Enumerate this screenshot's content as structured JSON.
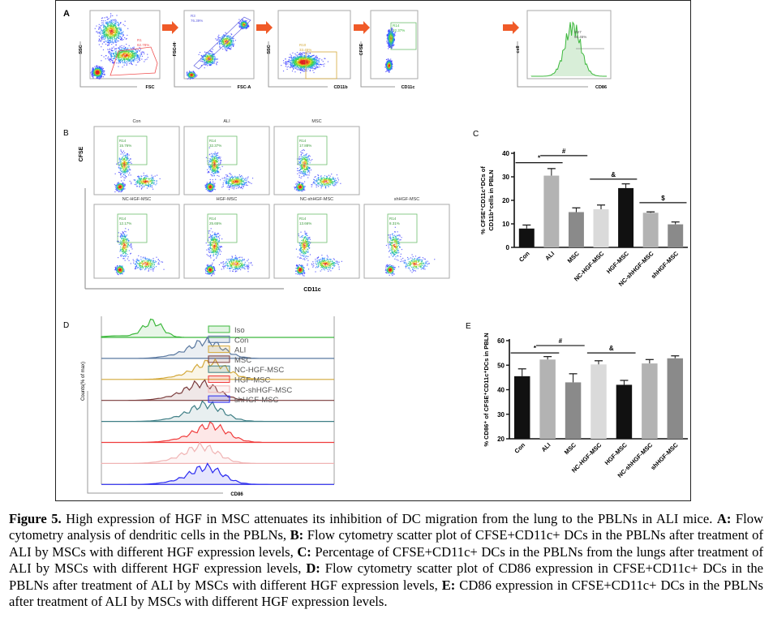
{
  "panels": {
    "A": {
      "label": "A",
      "plots": [
        {
          "x": "FSC",
          "y": "SSC",
          "gate": "R1",
          "pct": "62.78%"
        },
        {
          "x": "FSC-A",
          "y": "FSC-H",
          "gate": "R3",
          "pct": "76.39%"
        },
        {
          "x": "CD11b",
          "y": "SSC",
          "gate": "R10",
          "pct": "33.45%"
        },
        {
          "x": "CD11c",
          "y": "CFSE",
          "gate": "R14",
          "pct": "32.37%"
        },
        {
          "x": "CD86",
          "y": "cell",
          "gate": "M27",
          "pct": "56.45%"
        }
      ]
    },
    "B": {
      "label": "B",
      "xlabel": "CD11c",
      "ylabel": "CFSE",
      "plots": [
        {
          "title": "Con",
          "gate": "R14",
          "pct": "15.76%"
        },
        {
          "title": "ALI",
          "gate": "R14",
          "pct": "32.37%"
        },
        {
          "title": "MSC",
          "gate": "R14",
          "pct": "17.88%"
        },
        {
          "title": "NC-HGF-MSC",
          "gate": "R14",
          "pct": "12.17%"
        },
        {
          "title": "HGF-MSC",
          "gate": "R14",
          "pct": "25.65%"
        },
        {
          "title": "NC-shHGF-MSC",
          "gate": "R14",
          "pct": "13.66%"
        },
        {
          "title": "shHGF-MSC",
          "gate": "R14",
          "pct": "8.31%"
        }
      ]
    },
    "C": {
      "label": "C"
    },
    "D": {
      "label": "D",
      "xlabel": "CD86",
      "ylabel": "Counts(% of max)",
      "legend": [
        {
          "name": "Iso",
          "color": "#3cb83c"
        },
        {
          "name": "Con",
          "color": "#5a78a0"
        },
        {
          "name": "ALI",
          "color": "#d4a93a"
        },
        {
          "name": "MSC",
          "color": "#7a3b3b"
        },
        {
          "name": "NC-HGF-MSC",
          "color": "#3f7f86"
        },
        {
          "name": "HGF-MSC",
          "color": "#f03c3c"
        },
        {
          "name": "NC-shHGF-MSC",
          "color": "#f0b4b4"
        },
        {
          "name": "shHGF-MSC",
          "color": "#2a2af0"
        }
      ]
    },
    "E": {
      "label": "E"
    }
  },
  "chart_data": [
    {
      "panel": "C",
      "type": "bar",
      "categories": [
        "Con",
        "ALI",
        "MSC",
        "NC-HGF-MSC",
        "HGF-MSC",
        "NC-shHGF-MSC",
        "shHGF-MSC"
      ],
      "values": [
        8,
        30.5,
        15,
        16.2,
        25.2,
        14.7,
        9.8
      ],
      "errors": [
        1.5,
        3,
        1.8,
        1.8,
        1.8,
        0.4,
        1
      ],
      "colors": [
        "#111111",
        "#b3b3b3",
        "#8a8a8a",
        "#dadada",
        "#111111",
        "#b3b3b3",
        "#8a8a8a"
      ],
      "ylabel": [
        "% CFSE⁺CD11c⁺DCs of",
        "CD11b⁺cells in PBLN"
      ],
      "ylim": [
        0,
        40
      ],
      "yticks": [
        "0",
        "10",
        "20",
        "30",
        "40"
      ],
      "significance": [
        {
          "from": 0,
          "to": 1,
          "symbol": "*",
          "level": 36
        },
        {
          "from": 1,
          "to": 2,
          "symbol": "#",
          "level": 39
        },
        {
          "from": 3,
          "to": 4,
          "symbol": "&",
          "level": 29
        },
        {
          "from": 5,
          "to": 6,
          "symbol": "$",
          "level": 19
        }
      ]
    },
    {
      "panel": "E",
      "type": "bar",
      "categories": [
        "Con",
        "ALI",
        "MSC",
        "NC-HGF-MSC",
        "HGF-MSC",
        "NC-shHGF-MSC",
        "shHGF-MSC"
      ],
      "values": [
        45.5,
        52.3,
        43,
        50.3,
        42,
        50.7,
        52.8
      ],
      "errors": [
        3,
        1.2,
        3.5,
        1.5,
        1.8,
        1.6,
        1
      ],
      "colors": [
        "#111111",
        "#b3b3b3",
        "#8a8a8a",
        "#dadada",
        "#111111",
        "#b3b3b3",
        "#8a8a8a"
      ],
      "ylabel": [
        "% CD86⁺ of CFSE⁺CD11c⁺DCs in PBLN"
      ],
      "ylim": [
        20,
        60
      ],
      "yticks": [
        "20",
        "30",
        "40",
        "50",
        "60"
      ],
      "significance": [
        {
          "from": 0,
          "to": 1,
          "symbol": "*",
          "level": 55
        },
        {
          "from": 1,
          "to": 2,
          "symbol": "#",
          "level": 58
        },
        {
          "from": 3,
          "to": 4,
          "symbol": "&",
          "level": 55
        }
      ]
    }
  ],
  "caption": {
    "title": "Figure 5.",
    "intro": " High expression of HGF in MSC attenuates its inhibition of DC migration from the lung to the PBLNs in ALI mice. ",
    "A_label": "A:",
    "A_text": " Flow cytometry analysis of dendritic cells in the PBLNs, ",
    "B_label": "B:",
    "B_text": " Flow cytometry scatter plot of CFSE+CD11c+ DCs in the PBLNs after treatment of ALI by MSCs with different HGF expression levels, ",
    "C_label": "C:",
    "C_text": " Percentage of CFSE+CD11c+ DCs in the PBLNs from the lungs after treatment of ALI by MSCs with different HGF expression levels, ",
    "D_label": "D:",
    "D_text": " Flow cytometry scatter plot of CD86 expression in CFSE+CD11c+ DCs in the PBLNs after treatment of ALI by MSCs with different HGF expression levels, ",
    "E_label": "E:",
    "E_text": " CD86 expression in CFSE+CD11c+ DCs in the PBLNs after treatment of ALI by MSCs with different HGF expression levels."
  }
}
